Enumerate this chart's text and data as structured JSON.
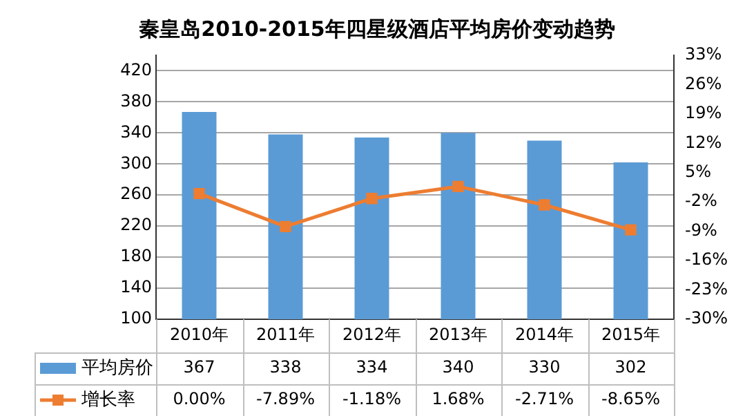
{
  "chart_data": {
    "type": "bar",
    "title": "秦皇岛2010-2015年四星级酒店平均房价变动趋势",
    "categories": [
      "2010年",
      "2011年",
      "2012年",
      "2013年",
      "2014年",
      "2015年"
    ],
    "series": [
      {
        "name": "平均房价",
        "color": "#5b9bd5",
        "values": [
          367,
          338,
          334,
          340,
          330,
          302
        ],
        "value_labels": [
          "367",
          "338",
          "334",
          "340",
          "330",
          "302"
        ]
      },
      {
        "name": "增长率",
        "type": "line",
        "axis": "y2",
        "color": "#ed7d31",
        "values": [
          0,
          -7.89,
          -1.18,
          1.68,
          -2.71,
          -8.65
        ],
        "value_labels": [
          "0.00%",
          "-7.89%",
          "-1.18%",
          "1.68%",
          "-2.71%",
          "-8.65%"
        ]
      }
    ],
    "ylim": [
      100,
      440
    ],
    "yticks": [
      100,
      140,
      180,
      220,
      260,
      300,
      340,
      380,
      420
    ],
    "y2lim": [
      -30,
      33
    ],
    "y2ticks": [
      {
        "value": -30,
        "label": "-30%"
      },
      {
        "value": -23,
        "label": "-23%"
      },
      {
        "value": -16,
        "label": "-16%"
      },
      {
        "value": -9,
        "label": "-9%"
      },
      {
        "value": -2,
        "label": "-2%"
      },
      {
        "value": 5,
        "label": "5%"
      },
      {
        "value": 12,
        "label": "12%"
      },
      {
        "value": 19,
        "label": "19%"
      },
      {
        "value": 26,
        "label": "26%"
      },
      {
        "value": 33,
        "label": "33%"
      }
    ],
    "grid": "y",
    "legend": "bottom",
    "marker": "square",
    "line_style": "solid"
  }
}
